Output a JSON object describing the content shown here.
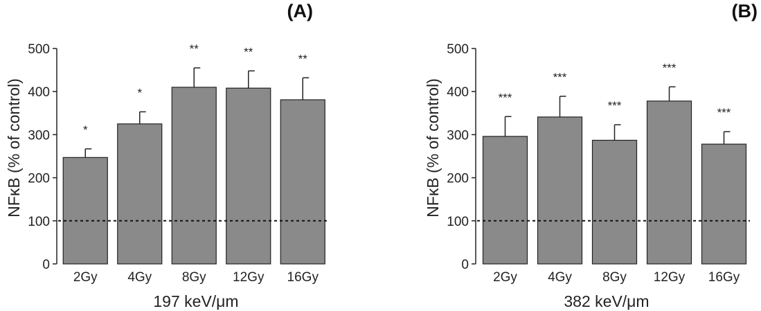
{
  "chart_data": [
    {
      "type": "bar",
      "panel_label": "(A)",
      "categories": [
        "2Gy",
        "4Gy",
        "8Gy",
        "12Gy",
        "16Gy"
      ],
      "values": [
        247,
        325,
        410,
        408,
        381
      ],
      "errors": [
        20,
        28,
        45,
        40,
        51
      ],
      "significance": [
        "*",
        "*",
        "**",
        "**",
        "**"
      ],
      "xlabel": "197 keV/μm",
      "ylabel": "NFκB (% of control)",
      "ylim": [
        0,
        500
      ],
      "yticks": [
        0,
        100,
        200,
        300,
        400,
        500
      ],
      "reference_line": 100,
      "bar_color": "#8a8a8a",
      "grid": false
    },
    {
      "type": "bar",
      "panel_label": "(B)",
      "categories": [
        "2Gy",
        "4Gy",
        "8Gy",
        "12Gy",
        "16Gy"
      ],
      "values": [
        296,
        341,
        287,
        378,
        278
      ],
      "errors": [
        46,
        48,
        36,
        33,
        29
      ],
      "significance": [
        "***",
        "***",
        "***",
        "***",
        "***"
      ],
      "xlabel": "382 keV/μm",
      "ylabel": "NFκB (% of control)",
      "ylim": [
        0,
        500
      ],
      "yticks": [
        0,
        100,
        200,
        300,
        400,
        500
      ],
      "reference_line": 100,
      "bar_color": "#8a8a8a",
      "grid": false
    }
  ]
}
